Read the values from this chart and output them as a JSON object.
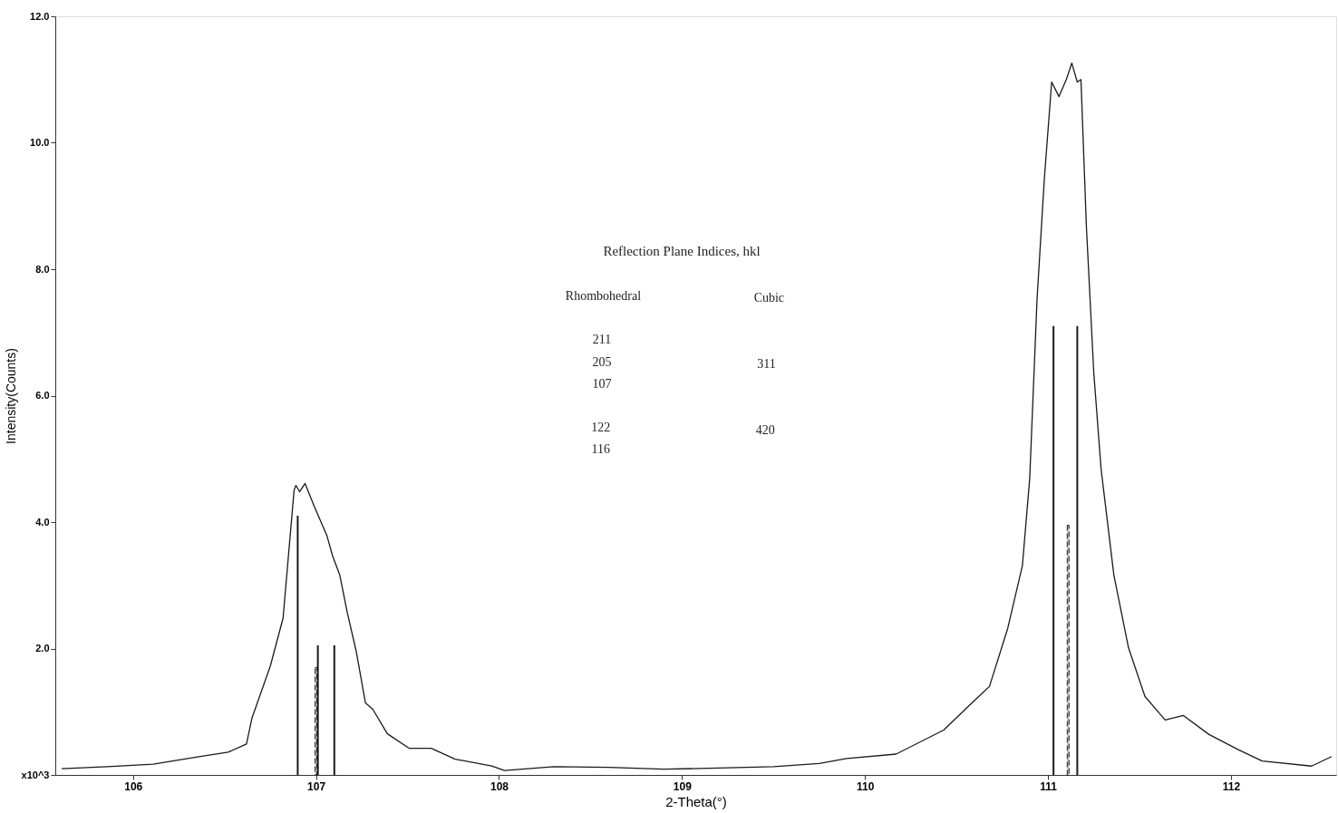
{
  "chart_data": {
    "type": "line",
    "xlabel": "2-Theta(°)",
    "ylabel": "Intensity(Counts)",
    "xlim": [
      105.6,
      112.55
    ],
    "xticks": [
      106,
      107,
      108,
      109,
      110,
      111,
      112
    ],
    "ylim": [
      0,
      12
    ],
    "yticks": [
      {
        "value": 0,
        "label": "x10^3"
      },
      {
        "value": 2,
        "label": "2.0"
      },
      {
        "value": 4,
        "label": "4.0"
      },
      {
        "value": 6,
        "label": "6.0"
      },
      {
        "value": 8,
        "label": "8.0"
      },
      {
        "value": 10,
        "label": "10.0"
      },
      {
        "value": 12,
        "label": "12.0"
      }
    ],
    "grid": false,
    "marker": "none",
    "annotations": [
      "Reflection Plane Indices, hkl",
      "Rhombohedral",
      "Cubic",
      "211",
      "205",
      "107",
      "311",
      "122",
      "116",
      "420"
    ],
    "series": [
      {
        "color": "#1a1a1a",
        "line_style": "solid",
        "x": [
          105.61,
          105.86,
          106.11,
          106.36,
          106.52,
          106.62,
          106.65,
          106.75,
          106.82,
          106.88,
          106.89,
          106.91,
          106.94,
          106.99,
          107.06,
          107.09,
          107.13,
          107.17,
          107.22,
          107.27,
          107.31,
          107.39,
          107.51,
          107.63,
          107.76,
          107.96,
          108.03,
          108.3,
          108.6,
          108.9,
          109.2,
          109.5,
          109.75,
          109.9,
          110.17,
          110.43,
          110.57,
          110.68,
          110.78,
          110.86,
          110.9,
          110.94,
          110.98,
          111.02,
          111.06,
          111.1,
          111.13,
          111.16,
          111.18,
          111.21,
          111.25,
          111.29,
          111.36,
          111.44,
          111.53,
          111.64,
          111.74,
          111.88,
          112.04,
          112.17,
          112.44,
          112.55
        ],
        "values": [
          0.1,
          0.13,
          0.17,
          0.29,
          0.36,
          0.49,
          0.9,
          1.72,
          2.48,
          4.5,
          4.58,
          4.48,
          4.61,
          4.25,
          3.78,
          3.47,
          3.16,
          2.58,
          1.95,
          1.14,
          1.04,
          0.65,
          0.42,
          0.42,
          0.25,
          0.14,
          0.07,
          0.13,
          0.12,
          0.09,
          0.11,
          0.13,
          0.18,
          0.26,
          0.33,
          0.71,
          1.1,
          1.4,
          2.32,
          3.31,
          4.69,
          7.52,
          9.43,
          10.96,
          10.73,
          11.0,
          11.26,
          10.96,
          11.0,
          8.66,
          6.37,
          4.84,
          3.16,
          2.01,
          1.24,
          0.87,
          0.94,
          0.64,
          0.4,
          0.22,
          0.14,
          0.29
        ]
      },
      {
        "type": "bar",
        "color": "#1a1a1a",
        "line_style": "solid",
        "x": [
          106.9,
          107.01,
          107.1,
          111.03,
          111.16
        ],
        "values": [
          4.1,
          2.05,
          2.05,
          7.1,
          7.1
        ]
      },
      {
        "type": "bar",
        "color": "#1a1a1a",
        "line_style": "dashed",
        "x": [
          107.0,
          111.11
        ],
        "values": [
          1.7,
          3.95
        ]
      }
    ]
  }
}
